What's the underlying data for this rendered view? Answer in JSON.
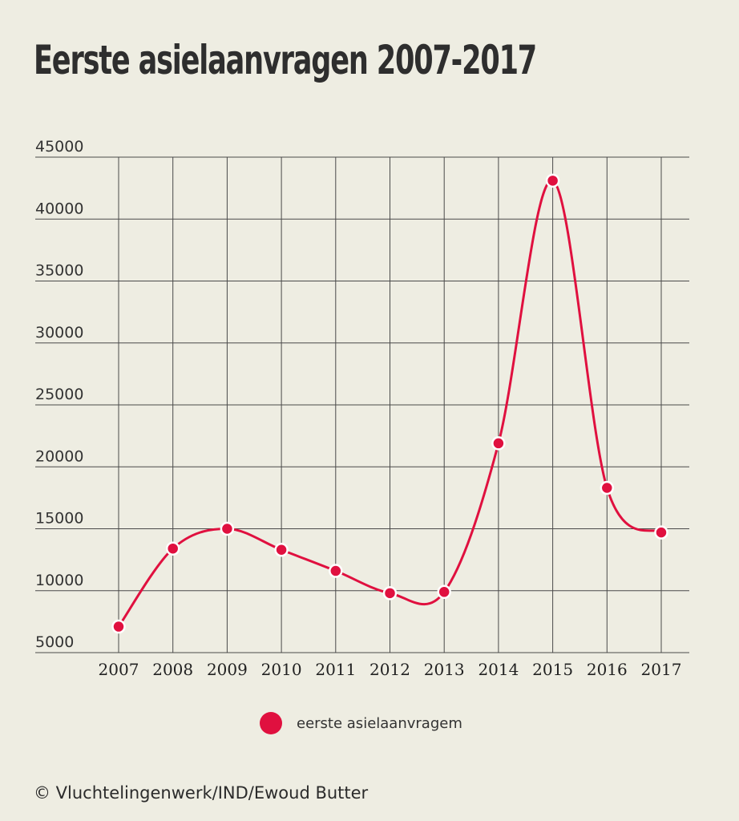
{
  "chart_data": {
    "type": "line",
    "title": "Eerste asielaanvragen 2007-2017",
    "xlabel": "",
    "ylabel": "",
    "categories": [
      "2007",
      "2008",
      "2009",
      "2010",
      "2011",
      "2012",
      "2013",
      "2014",
      "2015",
      "2016",
      "2017"
    ],
    "series": [
      {
        "name": "eerste asielaanvragem",
        "values": [
          7100,
          13400,
          15000,
          13300,
          11600,
          9800,
          9900,
          21900,
          43100,
          18300,
          14700
        ]
      }
    ],
    "ylim": [
      5000,
      45000
    ],
    "yticks": [
      "5000",
      "10000",
      "15000",
      "20000",
      "25000",
      "30000",
      "35000",
      "40000",
      "45000"
    ],
    "grid": true,
    "legend_position": "bottom-center",
    "colors": {
      "series": "#e0103f",
      "grid": "#4a4a4a",
      "background": "#eeede2"
    }
  },
  "credit": "© Vluchtelingenwerk/IND/Ewoud Butter"
}
